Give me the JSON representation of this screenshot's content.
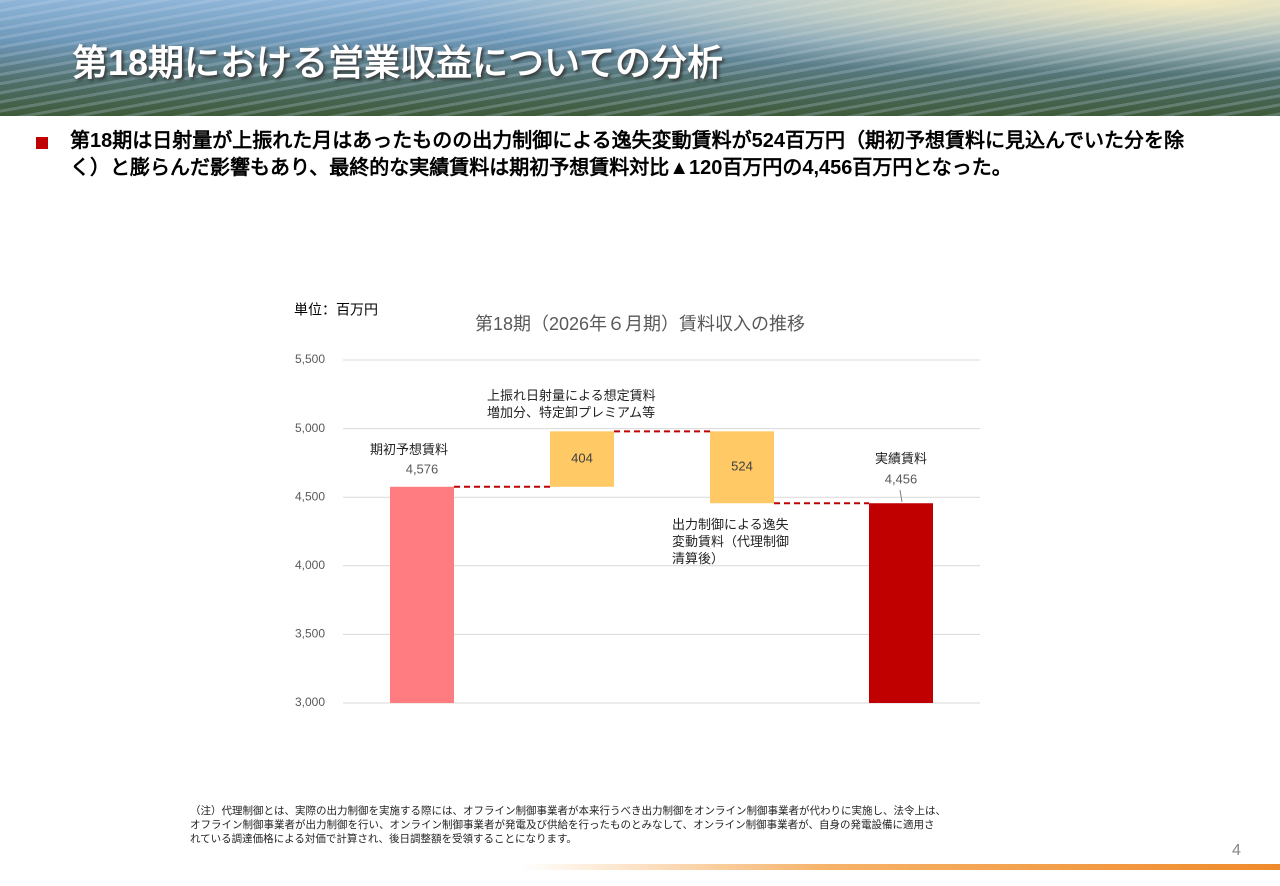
{
  "header": {
    "title": "第18期における営業収益についての分析"
  },
  "bullet": "第18期は日射量が上振れた月はあったものの出力制御による逸失変動賃料が524百万円（期初予想賃料に見込んでいた分を除く）と膨らんだ影響もあり、最終的な実績賃料は期初予想賃料対比▲120百万円の4,456百万円となった。",
  "chart_data": {
    "type": "waterfall",
    "title": "第18期（2026年６月期）賃料収入の推移",
    "unit": "単位：百万円",
    "categories": [
      "期初予想賃料",
      "上振れ日射量による想定賃料\n増加分、特定卸プレミアム等",
      "出力制御による逸失\n変動賃料（代理制御\n清算後）",
      "実績賃料"
    ],
    "values": [
      4576,
      404,
      -524,
      4456
    ],
    "value_labels": [
      "4,576",
      "404",
      "524",
      "4,456"
    ],
    "measure": [
      "absolute",
      "relative",
      "relative",
      "total"
    ],
    "colors": [
      "#ff7c80",
      "#ffc966",
      "#ffc966",
      "#c00000"
    ],
    "connector_color": "#c00000",
    "ylim": [
      3000,
      5500
    ],
    "yticks": [
      {
        "value": 3000,
        "label": "3,000"
      },
      {
        "value": 3500,
        "label": "3,500"
      },
      {
        "value": 4000,
        "label": "4,000"
      },
      {
        "value": 4500,
        "label": "4,500"
      },
      {
        "value": 5000,
        "label": "5,000"
      },
      {
        "value": 5500,
        "label": "5,500"
      }
    ],
    "grid": true
  },
  "note": [
    "（注）代理制御とは、実際の出力制御を実施する際には、オフライン制御事業者が本来行うべき出力制御をオンライン制御事業者が代わりに実施し、法令上は、",
    "オフライン制御事業者が出力制御を行い、オンライン制御事業者が発電及び供給を行ったものとみなして、オンライン制御事業者が、自身の発電設備に適用さ",
    "れている調達価格による対価で計算され、後日調整額を受領することになります。"
  ],
  "page_number": "4"
}
